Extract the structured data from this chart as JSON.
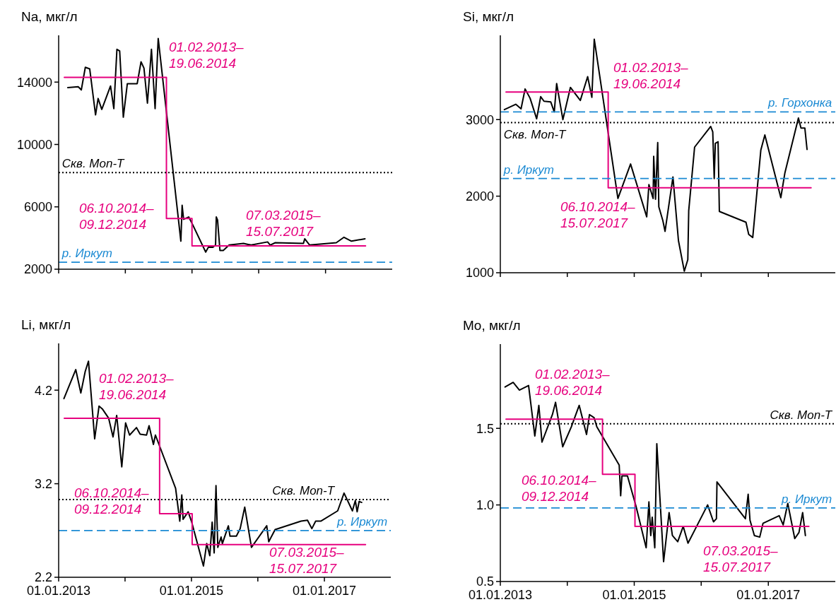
{
  "chart_data": [
    {
      "type": "line",
      "ylabel": "Na, мкг/л",
      "xlim": [
        "2013-01-01",
        "2018-01-01"
      ],
      "xticks": [
        {
          "value": "2013-01-01",
          "label": null
        },
        {
          "value": "2014-01-01",
          "label": null
        },
        {
          "value": "2015-01-01",
          "label": null
        },
        {
          "value": "2016-01-01",
          "label": null
        },
        {
          "value": "2017-01-01",
          "label": null
        }
      ],
      "ylim": [
        2000,
        17000
      ],
      "yticks": [
        2000,
        6000,
        10000,
        14000
      ],
      "tick_labels": "y",
      "series": [
        {
          "color": "#000000",
          "x": [
            "2013-02-20",
            "2013-04-18",
            "2013-05-05",
            "2013-05-27",
            "2013-06-20",
            "2013-07-22",
            "2013-08-05",
            "2013-08-25",
            "2013-10-12",
            "2013-10-30",
            "2013-11-16",
            "2013-12-01",
            "2013-12-21",
            "2014-01-12",
            "2014-03-07",
            "2014-03-28",
            "2014-04-13",
            "2014-05-02",
            "2014-05-24",
            "2014-06-13",
            "2014-06-30",
            "2014-07-22",
            "2014-11-01",
            "2014-11-08",
            "2014-11-16",
            "2014-12-14",
            "2015-01-05",
            "2015-03-17",
            "2015-03-31",
            "2015-04-25",
            "2015-05-10",
            "2015-05-14",
            "2015-05-21",
            "2015-06-03",
            "2015-06-21",
            "2015-07-23",
            "2015-10-10",
            "2015-10-31",
            "2015-11-21",
            "2016-02-19",
            "2016-03-04",
            "2016-04-01",
            "2016-09-02",
            "2016-09-09",
            "2016-10-06",
            "2017-03-01",
            "2017-04-12",
            "2017-05-23",
            "2017-08-05"
          ],
          "values": [
            13650,
            13700,
            13500,
            14950,
            14850,
            11900,
            12950,
            12250,
            13750,
            12300,
            16100,
            16000,
            11750,
            13900,
            13900,
            15300,
            14900,
            12650,
            16100,
            12300,
            16800,
            14500,
            3800,
            6100,
            5200,
            5350,
            4850,
            3100,
            3400,
            3400,
            3550,
            5350,
            5150,
            3200,
            3200,
            3550,
            3650,
            3600,
            3550,
            3750,
            3550,
            3700,
            3650,
            3950,
            3550,
            3700,
            4050,
            3800,
            3950
          ]
        },
        {
          "type": "step",
          "color": "#e6007e",
          "x": [
            "2013-02-01",
            "2014-08-14",
            "2015-01-01",
            "2017-08-08"
          ],
          "values": [
            14300,
            5250,
            3500,
            3500
          ]
        }
      ],
      "ref_lines": [
        {
          "axis": "y",
          "value": 8200,
          "label": "Скв. Mon-T",
          "color": "#000000",
          "line_style": "dotted"
        },
        {
          "axis": "y",
          "value": 2450,
          "label": "р. Иркут",
          "color": "#1b8ad3",
          "line_style": "dashed"
        }
      ],
      "annotations": [
        "01.02.2013–\n19.06.2014",
        "06.10.2014–\n09.12.2014",
        "07.03.2015–\n15.07.2017"
      ]
    },
    {
      "type": "line",
      "ylabel": "Si, мкг/л",
      "xlim": [
        "2013-01-01",
        "2018-01-01"
      ],
      "xticks": [
        {
          "value": "2013-01-01",
          "label": null
        },
        {
          "value": "2014-01-01",
          "label": null
        },
        {
          "value": "2015-01-01",
          "label": null
        },
        {
          "value": "2016-01-01",
          "label": null
        },
        {
          "value": "2017-01-01",
          "label": null
        }
      ],
      "ylim": [
        1000,
        4100
      ],
      "yticks": [
        1000,
        2000,
        3000
      ],
      "tick_labels": "y",
      "series": [
        {
          "color": "#000000",
          "x": [
            "2013-01-23",
            "2013-03-26",
            "2013-04-24",
            "2013-05-16",
            "2013-06-12",
            "2013-07-18",
            "2013-08-09",
            "2013-08-27",
            "2013-10-03",
            "2013-10-22",
            "2013-11-04",
            "2013-12-08",
            "2014-01-18",
            "2014-03-13",
            "2014-04-22",
            "2014-05-15",
            "2014-05-28",
            "2014-10-04",
            "2014-12-12",
            "2015-03-10",
            "2015-03-22",
            "2015-04-14",
            "2015-04-17",
            "2015-04-27",
            "2015-05-09",
            "2015-05-15",
            "2015-06-06",
            "2015-06-18",
            "2015-07-31",
            "2015-08-30",
            "2015-10-01",
            "2015-10-20",
            "2015-10-25",
            "2015-11-26",
            "2016-02-22",
            "2016-03-04",
            "2016-03-12",
            "2016-03-18",
            "2016-04-02",
            "2016-04-09",
            "2016-09-01",
            "2016-09-16",
            "2016-10-08",
            "2016-11-21",
            "2016-12-13",
            "2017-03-10",
            "2017-04-01",
            "2017-06-14",
            "2017-06-28",
            "2017-07-19",
            "2017-07-31"
          ],
          "values": [
            3130,
            3200,
            3140,
            3400,
            3280,
            3010,
            3300,
            3240,
            3230,
            3100,
            3470,
            3000,
            3420,
            3250,
            3560,
            3290,
            4050,
            1970,
            2420,
            1730,
            2150,
            1970,
            2520,
            1960,
            2700,
            1860,
            1680,
            1540,
            2250,
            1420,
            1020,
            1170,
            1810,
            2640,
            2910,
            2840,
            2230,
            2690,
            2710,
            1800,
            1660,
            1500,
            1460,
            2600,
            2800,
            1980,
            2300,
            3020,
            2890,
            2890,
            2610
          ]
        },
        {
          "type": "step",
          "color": "#e6007e",
          "x": [
            "2013-02-01",
            "2014-08-12",
            "2017-08-22"
          ],
          "values": [
            3360,
            2110,
            2110
          ]
        }
      ],
      "ref_lines": [
        {
          "axis": "y",
          "value": 3100,
          "label": "р. Горхонка",
          "color": "#1b8ad3",
          "line_style": "dashed"
        },
        {
          "axis": "y",
          "value": 2960,
          "label": "Скв. Mon-T",
          "color": "#000000",
          "line_style": "dotted"
        },
        {
          "axis": "y",
          "value": 2230,
          "label": "р. Иркут",
          "color": "#1b8ad3",
          "line_style": "dashed"
        }
      ],
      "annotations": [
        "01.02.2013–\n19.06.2014",
        "06.10.2014–\n15.07.2017"
      ]
    },
    {
      "type": "line",
      "ylabel": "Li, мкг/л",
      "xlim": [
        "2013-01-01",
        "2018-01-01"
      ],
      "xticks": [
        {
          "value": "2013-01-01",
          "label": "01.01.2013"
        },
        {
          "value": "2014-01-01",
          "label": null
        },
        {
          "value": "2015-01-01",
          "label": "01.01.2015"
        },
        {
          "value": "2016-01-01",
          "label": null
        },
        {
          "value": "2017-01-01",
          "label": "01.01.2017"
        }
      ],
      "ylim": [
        2.2,
        4.7
      ],
      "yticks": [
        2.2,
        3.2,
        4.2
      ],
      "series": [
        {
          "color": "#000000",
          "x": [
            "2013-01-30",
            "2013-04-05",
            "2013-05-03",
            "2013-05-27",
            "2013-06-14",
            "2013-07-18",
            "2013-08-11",
            "2013-08-29",
            "2013-10-03",
            "2013-10-27",
            "2013-11-16",
            "2013-12-14",
            "2014-01-04",
            "2014-01-26",
            "2014-03-05",
            "2014-03-25",
            "2014-04-29",
            "2014-05-13",
            "2014-06-06",
            "2014-06-17",
            "2014-10-06",
            "2014-10-29",
            "2014-11-09",
            "2014-11-16",
            "2014-12-14",
            "2015-01-01",
            "2015-03-08",
            "2015-03-26",
            "2015-04-12",
            "2015-04-25",
            "2015-05-06",
            "2015-05-16",
            "2015-05-26",
            "2015-06-13",
            "2015-06-20",
            "2015-07-23",
            "2015-08-01",
            "2015-09-05",
            "2015-09-26",
            "2015-10-21",
            "2015-11-27",
            "2016-02-19",
            "2016-03-01",
            "2016-04-05",
            "2016-08-26",
            "2016-09-30",
            "2016-10-24",
            "2016-11-14",
            "2016-12-12",
            "2017-03-15",
            "2017-04-19",
            "2017-06-04",
            "2017-06-20",
            "2017-06-30",
            "2017-07-11",
            "2017-07-25"
          ],
          "values": [
            4.11,
            4.42,
            4.17,
            4.4,
            4.51,
            3.68,
            4.03,
            4.0,
            3.9,
            3.7,
            3.93,
            3.38,
            3.85,
            3.72,
            3.8,
            3.73,
            3.72,
            3.82,
            3.62,
            3.72,
            3.15,
            2.8,
            3.08,
            2.82,
            2.9,
            2.8,
            2.32,
            2.56,
            2.43,
            2.79,
            2.46,
            3.18,
            2.52,
            2.63,
            2.56,
            2.75,
            2.64,
            2.64,
            2.72,
            2.95,
            2.52,
            2.75,
            2.58,
            2.71,
            2.8,
            2.81,
            2.72,
            2.8,
            2.8,
            2.91,
            3.1,
            2.91,
            3.02,
            2.9,
            3.01,
            3.0
          ]
        },
        {
          "type": "step",
          "color": "#e6007e",
          "x": [
            "2013-02-01",
            "2014-07-10",
            "2015-01-05",
            "2017-08-15"
          ],
          "values": [
            3.9,
            2.88,
            2.55,
            2.55
          ]
        }
      ],
      "ref_lines": [
        {
          "axis": "y",
          "value": 3.03,
          "label": "Скв. Mon-T",
          "color": "#000000",
          "line_style": "dotted"
        },
        {
          "axis": "y",
          "value": 2.7,
          "label": "р. Иркут",
          "color": "#1b8ad3",
          "line_style": "dashed"
        }
      ],
      "annotations": [
        "01.02.2013–\n19.06.2014",
        "06.10.2014–\n09.12.2014",
        "07.03.2015–\n15.07.2017"
      ]
    },
    {
      "type": "line",
      "ylabel": "Mo, мкг/л",
      "xlim": [
        "2013-01-01",
        "2018-01-01"
      ],
      "xticks": [
        {
          "value": "2013-01-01",
          "label": "01.01.2013"
        },
        {
          "value": "2014-01-01",
          "label": null
        },
        {
          "value": "2015-01-01",
          "label": "01.01.2015"
        },
        {
          "value": "2016-01-01",
          "label": null
        },
        {
          "value": "2017-01-01",
          "label": "01.01.2017"
        }
      ],
      "ylim": [
        0.5,
        2.05
      ],
      "yticks": [
        {
          "value": 0.5,
          "label": "0.5"
        },
        {
          "value": 1,
          "label": "1.0"
        },
        {
          "value": 1.5,
          "label": "1.5"
        }
      ],
      "series": [
        {
          "color": "#000000",
          "x": [
            "2013-01-27",
            "2013-03-12",
            "2013-04-15",
            "2013-06-04",
            "2013-07-08",
            "2013-07-30",
            "2013-08-16",
            "2013-10-12",
            "2013-10-29",
            "2013-12-07",
            "2014-01-23",
            "2014-03-07",
            "2014-04-16",
            "2014-05-02",
            "2014-05-27",
            "2014-06-11",
            "2014-10-11",
            "2014-10-19",
            "2014-10-26",
            "2014-11-25",
            "2015-01-11",
            "2015-03-07",
            "2015-03-22",
            "2015-04-01",
            "2015-04-09",
            "2015-04-23",
            "2015-05-04",
            "2015-06-10",
            "2015-07-10",
            "2015-07-28",
            "2015-08-26",
            "2015-09-25",
            "2015-10-21",
            "2016-02-05",
            "2016-03-08",
            "2016-03-24",
            "2016-03-27",
            "2016-08-29",
            "2016-09-13",
            "2016-09-23",
            "2016-10-17",
            "2016-11-15",
            "2016-12-03",
            "2017-03-01",
            "2017-03-23",
            "2017-04-17",
            "2017-05-25",
            "2017-06-17",
            "2017-07-07",
            "2017-07-22"
          ],
          "values": [
            1.77,
            1.8,
            1.75,
            1.78,
            1.45,
            1.65,
            1.41,
            1.59,
            1.67,
            1.38,
            1.51,
            1.65,
            1.46,
            1.59,
            1.57,
            1.51,
            1.26,
            1.06,
            1.19,
            1.19,
            0.99,
            0.72,
            1.02,
            0.8,
            0.92,
            0.72,
            1.4,
            0.63,
            0.95,
            0.8,
            0.76,
            0.86,
            0.75,
            1.0,
            0.89,
            0.91,
            1.15,
            0.91,
            1.07,
            0.9,
            0.8,
            0.79,
            0.88,
            0.93,
            0.87,
            1.01,
            0.78,
            0.82,
            0.95,
            0.8
          ]
        },
        {
          "type": "step",
          "color": "#e6007e",
          "x": [
            "2013-02-01",
            "2014-07-12",
            "2015-01-05",
            "2017-08-10"
          ],
          "values": [
            1.56,
            1.2,
            0.86,
            0.86
          ]
        }
      ],
      "ref_lines": [
        {
          "axis": "y",
          "value": 1.53,
          "label": "Скв. Mon-T",
          "color": "#000000",
          "line_style": "dotted"
        },
        {
          "axis": "y",
          "value": 0.98,
          "label": "р. Иркут",
          "color": "#1b8ad3",
          "line_style": "dashed"
        }
      ],
      "annotations": [
        "01.02.2013–\n19.06.2014",
        "06.10.2014–\n09.12.2014",
        "07.03.2015–\n15.07.2017"
      ]
    }
  ]
}
